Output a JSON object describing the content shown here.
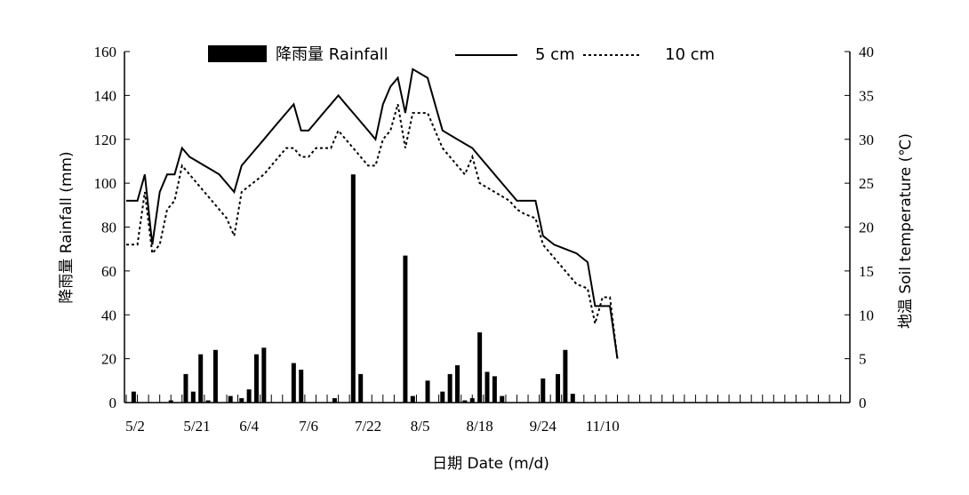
{
  "chart_data": {
    "type": "bar+line",
    "title": "",
    "xlabel": "日期 Date (m/d)",
    "ylabel_left": "降雨量 Rainfall (mm)",
    "ylabel_right": "地温 Soil temperature (℃)",
    "y_left_range": [
      0,
      160
    ],
    "y_left_ticks": [
      "0",
      "20",
      "40",
      "60",
      "80",
      "100",
      "120",
      "140",
      "160"
    ],
    "y_right_range": [
      0,
      40
    ],
    "y_right_ticks": [
      "0",
      "5",
      "10",
      "15",
      "20",
      "25",
      "30",
      "35",
      "40"
    ],
    "x_range_days": [
      0,
      194
    ],
    "x_tick_labels": [
      "5/2",
      "5/21",
      "6/4",
      "7/6",
      "7/22",
      "8/5",
      "8/18",
      "9/24",
      "11/10"
    ],
    "x_tick_days": [
      0,
      19,
      33,
      49,
      65,
      79,
      95,
      112,
      128
    ],
    "legend": {
      "rain_label": "降雨量 Rainfall",
      "t5_label": "5 cm",
      "t10_label": "10 cm",
      "placement": "top"
    },
    "rainfall": [
      {
        "x": 2,
        "y": 5
      },
      {
        "x": 12,
        "y": 1
      },
      {
        "x": 16,
        "y": 13
      },
      {
        "x": 18,
        "y": 5
      },
      {
        "x": 20,
        "y": 22
      },
      {
        "x": 22,
        "y": 1
      },
      {
        "x": 24,
        "y": 24
      },
      {
        "x": 28,
        "y": 3
      },
      {
        "x": 31,
        "y": 2
      },
      {
        "x": 33,
        "y": 6
      },
      {
        "x": 35,
        "y": 22
      },
      {
        "x": 37,
        "y": 25
      },
      {
        "x": 45,
        "y": 18
      },
      {
        "x": 47,
        "y": 15
      },
      {
        "x": 56,
        "y": 2
      },
      {
        "x": 61,
        "y": 104
      },
      {
        "x": 63,
        "y": 13
      },
      {
        "x": 75,
        "y": 67
      },
      {
        "x": 77,
        "y": 3
      },
      {
        "x": 81,
        "y": 10
      },
      {
        "x": 85,
        "y": 5
      },
      {
        "x": 87,
        "y": 13
      },
      {
        "x": 89,
        "y": 17
      },
      {
        "x": 91,
        "y": 1
      },
      {
        "x": 93,
        "y": 2
      },
      {
        "x": 95,
        "y": 32
      },
      {
        "x": 97,
        "y": 14
      },
      {
        "x": 99,
        "y": 12
      },
      {
        "x": 101,
        "y": 3
      },
      {
        "x": 112,
        "y": 11
      },
      {
        "x": 116,
        "y": 13
      },
      {
        "x": 118,
        "y": 24
      },
      {
        "x": 120,
        "y": 4
      }
    ],
    "series": [
      {
        "name": "5 cm",
        "points": [
          {
            "x": 0,
            "y": 23
          },
          {
            "x": 3,
            "y": 23
          },
          {
            "x": 5,
            "y": 26
          },
          {
            "x": 7,
            "y": 18
          },
          {
            "x": 9,
            "y": 24
          },
          {
            "x": 11,
            "y": 26
          },
          {
            "x": 13,
            "y": 26
          },
          {
            "x": 15,
            "y": 29
          },
          {
            "x": 17,
            "y": 28
          },
          {
            "x": 19,
            "y": 27.5
          },
          {
            "x": 21,
            "y": 27
          },
          {
            "x": 23,
            "y": 26.5
          },
          {
            "x": 25,
            "y": 26
          },
          {
            "x": 27,
            "y": 25
          },
          {
            "x": 29,
            "y": 24
          },
          {
            "x": 31,
            "y": 27
          },
          {
            "x": 34,
            "y": 28.5
          },
          {
            "x": 37,
            "y": 30
          },
          {
            "x": 40,
            "y": 31.5
          },
          {
            "x": 43,
            "y": 33
          },
          {
            "x": 45,
            "y": 34
          },
          {
            "x": 47,
            "y": 31
          },
          {
            "x": 49,
            "y": 31
          },
          {
            "x": 51,
            "y": 32
          },
          {
            "x": 53,
            "y": 33
          },
          {
            "x": 55,
            "y": 34
          },
          {
            "x": 57,
            "y": 35
          },
          {
            "x": 59,
            "y": 34
          },
          {
            "x": 61,
            "y": 33
          },
          {
            "x": 63,
            "y": 32
          },
          {
            "x": 65,
            "y": 31
          },
          {
            "x": 67,
            "y": 30
          },
          {
            "x": 69,
            "y": 34
          },
          {
            "x": 71,
            "y": 36
          },
          {
            "x": 73,
            "y": 37
          },
          {
            "x": 75,
            "y": 33
          },
          {
            "x": 77,
            "y": 38
          },
          {
            "x": 79,
            "y": 37.5
          },
          {
            "x": 81,
            "y": 37
          },
          {
            "x": 83,
            "y": 34
          },
          {
            "x": 85,
            "y": 31
          },
          {
            "x": 87,
            "y": 30.5
          },
          {
            "x": 89,
            "y": 30
          },
          {
            "x": 91,
            "y": 29.5
          },
          {
            "x": 93,
            "y": 29
          },
          {
            "x": 95,
            "y": 28
          },
          {
            "x": 97,
            "y": 27
          },
          {
            "x": 99,
            "y": 26
          },
          {
            "x": 101,
            "y": 25
          },
          {
            "x": 103,
            "y": 24
          },
          {
            "x": 105,
            "y": 23
          },
          {
            "x": 107,
            "y": 23
          },
          {
            "x": 110,
            "y": 23
          },
          {
            "x": 112,
            "y": 19
          },
          {
            "x": 115,
            "y": 18
          },
          {
            "x": 118,
            "y": 17.5
          },
          {
            "x": 121,
            "y": 17
          },
          {
            "x": 124,
            "y": 16
          },
          {
            "x": 126,
            "y": 11
          },
          {
            "x": 128,
            "y": 11
          },
          {
            "x": 130,
            "y": 11
          },
          {
            "x": 132,
            "y": 5
          }
        ]
      },
      {
        "name": "10 cm",
        "points": [
          {
            "x": 0,
            "y": 18
          },
          {
            "x": 3,
            "y": 18
          },
          {
            "x": 5,
            "y": 24
          },
          {
            "x": 7,
            "y": 17
          },
          {
            "x": 9,
            "y": 18
          },
          {
            "x": 11,
            "y": 22
          },
          {
            "x": 13,
            "y": 23
          },
          {
            "x": 15,
            "y": 27
          },
          {
            "x": 17,
            "y": 26
          },
          {
            "x": 19,
            "y": 25
          },
          {
            "x": 21,
            "y": 24
          },
          {
            "x": 23,
            "y": 23
          },
          {
            "x": 25,
            "y": 22
          },
          {
            "x": 27,
            "y": 21
          },
          {
            "x": 29,
            "y": 19
          },
          {
            "x": 31,
            "y": 24
          },
          {
            "x": 34,
            "y": 25
          },
          {
            "x": 37,
            "y": 26
          },
          {
            "x": 40,
            "y": 27.5
          },
          {
            "x": 43,
            "y": 29
          },
          {
            "x": 45,
            "y": 29
          },
          {
            "x": 47,
            "y": 28
          },
          {
            "x": 49,
            "y": 28
          },
          {
            "x": 51,
            "y": 29
          },
          {
            "x": 53,
            "y": 29
          },
          {
            "x": 55,
            "y": 29
          },
          {
            "x": 57,
            "y": 31
          },
          {
            "x": 59,
            "y": 30
          },
          {
            "x": 61,
            "y": 29
          },
          {
            "x": 63,
            "y": 28
          },
          {
            "x": 65,
            "y": 27
          },
          {
            "x": 67,
            "y": 27
          },
          {
            "x": 69,
            "y": 30
          },
          {
            "x": 71,
            "y": 31
          },
          {
            "x": 73,
            "y": 34
          },
          {
            "x": 75,
            "y": 29
          },
          {
            "x": 77,
            "y": 33
          },
          {
            "x": 79,
            "y": 33
          },
          {
            "x": 81,
            "y": 33
          },
          {
            "x": 83,
            "y": 31
          },
          {
            "x": 85,
            "y": 29
          },
          {
            "x": 87,
            "y": 28
          },
          {
            "x": 89,
            "y": 27
          },
          {
            "x": 91,
            "y": 26
          },
          {
            "x": 93,
            "y": 28
          },
          {
            "x": 95,
            "y": 25
          },
          {
            "x": 97,
            "y": 24.5
          },
          {
            "x": 99,
            "y": 24
          },
          {
            "x": 101,
            "y": 23.5
          },
          {
            "x": 103,
            "y": 23
          },
          {
            "x": 105,
            "y": 22
          },
          {
            "x": 107,
            "y": 21.5
          },
          {
            "x": 110,
            "y": 21
          },
          {
            "x": 112,
            "y": 18
          },
          {
            "x": 115,
            "y": 16.5
          },
          {
            "x": 118,
            "y": 15
          },
          {
            "x": 121,
            "y": 13.5
          },
          {
            "x": 124,
            "y": 13
          },
          {
            "x": 126,
            "y": 9
          },
          {
            "x": 128,
            "y": 12
          },
          {
            "x": 130,
            "y": 12
          },
          {
            "x": 132,
            "y": 5
          }
        ]
      }
    ]
  }
}
